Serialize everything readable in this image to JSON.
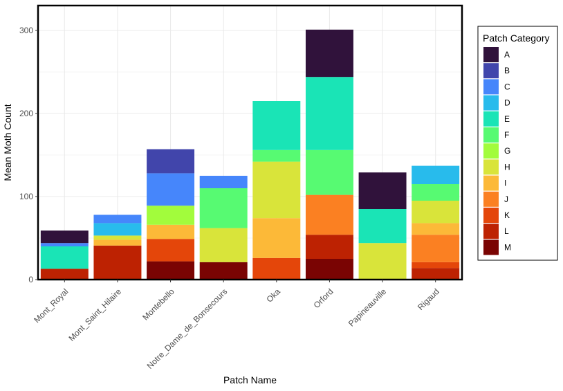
{
  "chart_data": {
    "type": "bar",
    "stacked": true,
    "title": "",
    "xlabel": "Patch Name",
    "ylabel": "Mean Moth Count",
    "ylim": [
      0,
      330
    ],
    "yticks": [
      0,
      100,
      200,
      300
    ],
    "grid": true,
    "legend": {
      "title": "Patch Category",
      "placement": "right"
    },
    "categories": [
      "Mont_Royal",
      "Mont_Saint_Hilaire",
      "Montebello",
      "Notre_Dame_de_Bonsecours",
      "Oka",
      "Orford",
      "Papineauville",
      "Rigaud"
    ],
    "series": [
      {
        "name": "A",
        "color": "#30123b",
        "values": [
          15,
          0,
          0,
          0,
          0,
          57,
          44,
          0
        ]
      },
      {
        "name": "B",
        "color": "#4145ab",
        "values": [
          0,
          0,
          29,
          0,
          0,
          0,
          0,
          0
        ]
      },
      {
        "name": "C",
        "color": "#4686fb",
        "values": [
          4,
          10,
          39,
          15,
          0,
          0,
          0,
          0
        ]
      },
      {
        "name": "D",
        "color": "#28bbec",
        "values": [
          0,
          15,
          0,
          0,
          0,
          0,
          0,
          22
        ]
      },
      {
        "name": "E",
        "color": "#1ae4b6",
        "values": [
          27,
          0,
          0,
          0,
          59,
          88,
          41,
          0
        ]
      },
      {
        "name": "F",
        "color": "#57fa72",
        "values": [
          0,
          0,
          0,
          48,
          14,
          54,
          0,
          20
        ]
      },
      {
        "name": "G",
        "color": "#a2fc3c",
        "values": [
          0,
          0,
          23,
          0,
          0,
          0,
          0,
          0
        ]
      },
      {
        "name": "H",
        "color": "#d9e43a",
        "values": [
          0,
          5,
          0,
          41,
          68,
          0,
          44,
          27
        ]
      },
      {
        "name": "I",
        "color": "#fcb938",
        "values": [
          0,
          7,
          17,
          0,
          48,
          0,
          0,
          14
        ]
      },
      {
        "name": "J",
        "color": "#fb8022",
        "values": [
          0,
          0,
          0,
          0,
          0,
          48,
          0,
          33
        ]
      },
      {
        "name": "K",
        "color": "#e4460a",
        "values": [
          0,
          0,
          27,
          0,
          26,
          0,
          0,
          7
        ]
      },
      {
        "name": "L",
        "color": "#bd2202",
        "values": [
          13,
          41,
          0,
          0,
          0,
          29,
          0,
          14
        ]
      },
      {
        "name": "M",
        "color": "#7a0403",
        "values": [
          0,
          0,
          22,
          21,
          0,
          25,
          0,
          0
        ]
      }
    ]
  }
}
